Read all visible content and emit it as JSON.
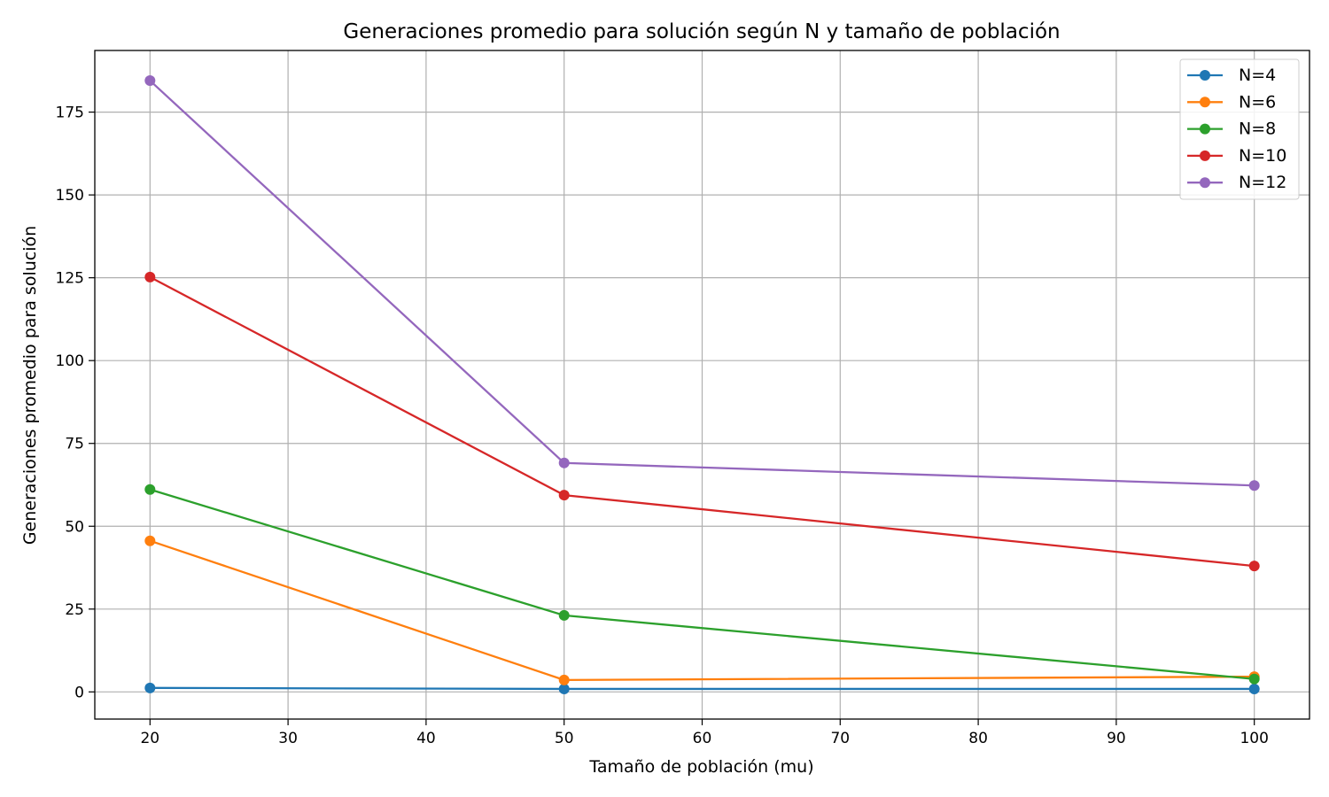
{
  "chart_data": {
    "type": "line",
    "title": "Generaciones promedio para solución según N y tamaño de población",
    "xlabel": "Tamaño de población (mu)",
    "ylabel": "Generaciones promedio para solución",
    "x": [
      20,
      50,
      100
    ],
    "xlim": [
      16,
      104
    ],
    "ylim": [
      -8.2,
      193.6
    ],
    "xticks": [
      20,
      30,
      40,
      50,
      60,
      70,
      80,
      90,
      100
    ],
    "yticks": [
      0,
      25,
      50,
      75,
      100,
      125,
      150,
      175
    ],
    "grid": true,
    "legend_position": "top-right",
    "series": [
      {
        "name": "N=4",
        "color": "#1f77b4",
        "values": [
          1.2,
          0.9,
          0.9
        ]
      },
      {
        "name": "N=6",
        "color": "#ff7f0e",
        "values": [
          45.6,
          3.6,
          4.6
        ]
      },
      {
        "name": "N=8",
        "color": "#2ca02c",
        "values": [
          61.1,
          23.1,
          3.9
        ]
      },
      {
        "name": "N=10",
        "color": "#d62728",
        "values": [
          125.2,
          59.4,
          38.0
        ]
      },
      {
        "name": "N=12",
        "color": "#9467bd",
        "values": [
          184.5,
          69.1,
          62.3
        ]
      }
    ]
  }
}
